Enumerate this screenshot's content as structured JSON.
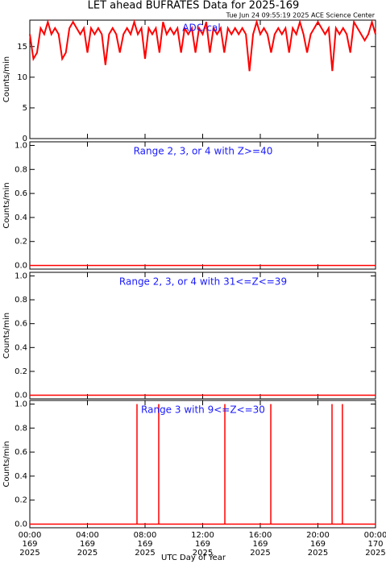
{
  "chart_data": [
    {
      "type": "line",
      "title": "LET ahead BUFRATES Data for 2025-169",
      "subtitle": "Tue Jun 24 09:55:19 2025 ACE Science Center",
      "annotation": "ADC-cal",
      "ylabel": "Counts/min",
      "color": "#ff0000",
      "xlim": [
        0,
        24
      ],
      "ylim": [
        0,
        19.3
      ],
      "yticks": [
        0,
        5,
        10,
        15
      ],
      "x": [
        0,
        0.25,
        0.5,
        0.75,
        1,
        1.25,
        1.5,
        1.75,
        2,
        2.25,
        2.5,
        2.75,
        3,
        3.25,
        3.5,
        3.75,
        4,
        4.25,
        4.5,
        4.75,
        5,
        5.25,
        5.5,
        5.75,
        6,
        6.25,
        6.5,
        6.75,
        7,
        7.25,
        7.5,
        7.75,
        8,
        8.25,
        8.5,
        8.75,
        9,
        9.25,
        9.5,
        9.75,
        10,
        10.25,
        10.5,
        10.75,
        11,
        11.25,
        11.5,
        11.75,
        12,
        12.25,
        12.5,
        12.75,
        13,
        13.25,
        13.5,
        13.75,
        14,
        14.25,
        14.5,
        14.75,
        15,
        15.25,
        15.5,
        15.75,
        16,
        16.25,
        16.5,
        16.75,
        17,
        17.25,
        17.5,
        17.75,
        18,
        18.25,
        18.5,
        18.75,
        19,
        19.25,
        19.5,
        19.75,
        20,
        20.25,
        20.5,
        20.75,
        21,
        21.25,
        21.5,
        21.75,
        22,
        22.25,
        22.5,
        22.75,
        23,
        23.25,
        23.5,
        23.75,
        24
      ],
      "values": [
        17,
        13,
        14,
        18,
        17,
        19,
        17,
        18,
        17,
        13,
        14,
        18,
        19,
        18,
        17,
        18,
        14,
        18,
        17,
        18,
        17,
        12,
        17,
        18,
        17,
        14,
        17,
        18,
        17,
        19,
        17,
        18,
        13,
        18,
        17,
        18,
        14,
        19,
        17,
        18,
        17,
        18,
        14,
        18,
        17,
        18,
        14,
        18,
        17,
        19,
        14,
        18,
        17,
        18,
        14,
        18,
        17,
        18,
        17,
        18,
        17,
        11,
        17,
        19,
        17,
        18,
        17,
        14,
        17,
        18,
        17,
        18,
        14,
        18,
        17,
        19,
        17,
        14,
        17,
        18,
        19,
        18,
        17,
        18,
        11,
        18,
        17,
        18,
        17,
        14,
        19,
        18,
        17,
        16,
        17,
        19,
        17
      ]
    },
    {
      "type": "line",
      "annotation": "Range 2, 3, or 4 with Z>=40",
      "ylabel": "Counts/min",
      "color": "#ff0000",
      "xlim": [
        0,
        24
      ],
      "ylim": [
        -0.03,
        1.03
      ],
      "yticks": [
        {
          "value": 0,
          "label": "0.0"
        },
        {
          "value": 0.2,
          "label": "0.2"
        },
        {
          "value": 0.4,
          "label": "0.4"
        },
        {
          "value": 0.6,
          "label": "0.6"
        },
        {
          "value": 0.8,
          "label": "0.8"
        },
        {
          "value": 1,
          "label": "1.0"
        }
      ],
      "x": [
        0,
        24
      ],
      "values": [
        0,
        0
      ]
    },
    {
      "type": "line",
      "annotation": "Range 2, 3, or 4 with 31<=Z<=39",
      "ylabel": "Counts/min",
      "color": "#ff0000",
      "xlim": [
        0,
        24
      ],
      "ylim": [
        -0.03,
        1.03
      ],
      "yticks": [
        {
          "value": 0,
          "label": "0.0"
        },
        {
          "value": 0.2,
          "label": "0.2"
        },
        {
          "value": 0.4,
          "label": "0.4"
        },
        {
          "value": 0.6,
          "label": "0.6"
        },
        {
          "value": 0.8,
          "label": "0.8"
        },
        {
          "value": 1,
          "label": "1.0"
        }
      ],
      "x": [
        0,
        24
      ],
      "values": [
        0,
        0
      ]
    },
    {
      "type": "line",
      "annotation": "Range 3 with 9<=Z<=30",
      "ylabel": "Counts/min",
      "xlabel": "UTC Day of Year",
      "color": "#ff0000",
      "xlim": [
        0,
        24
      ],
      "ylim": [
        -0.03,
        1.03
      ],
      "yticks": [
        {
          "value": 0,
          "label": "0.0"
        },
        {
          "value": 0.2,
          "label": "0.2"
        },
        {
          "value": 0.4,
          "label": "0.4"
        },
        {
          "value": 0.6,
          "label": "0.6"
        },
        {
          "value": 0.8,
          "label": "0.8"
        },
        {
          "value": 1,
          "label": "1.0"
        }
      ],
      "xticks": [
        {
          "value": 0,
          "label": [
            "00:00",
            "169",
            "2025"
          ]
        },
        {
          "value": 4,
          "label": [
            "04:00",
            "169",
            "2025"
          ]
        },
        {
          "value": 8,
          "label": [
            "08:00",
            "169",
            "2025"
          ]
        },
        {
          "value": 12,
          "label": [
            "12:00",
            "169",
            "2025"
          ]
        },
        {
          "value": 16,
          "label": [
            "16:00",
            "169",
            "2025"
          ]
        },
        {
          "value": 20,
          "label": [
            "20:00",
            "169",
            "2025"
          ]
        },
        {
          "value": 24,
          "label": [
            "00:00",
            "170",
            "2025"
          ]
        }
      ],
      "x": [
        0,
        7.44,
        7.44,
        7.44,
        8.95,
        8.95,
        8.95,
        13.54,
        13.54,
        13.54,
        16.73,
        16.73,
        16.73,
        20.98,
        20.98,
        20.98,
        21.7,
        21.7,
        21.7,
        24
      ],
      "values": [
        0,
        0,
        1,
        0,
        0,
        1,
        0,
        0,
        1,
        0,
        0,
        1,
        0,
        0,
        1,
        0,
        0,
        1,
        0,
        0
      ]
    }
  ]
}
